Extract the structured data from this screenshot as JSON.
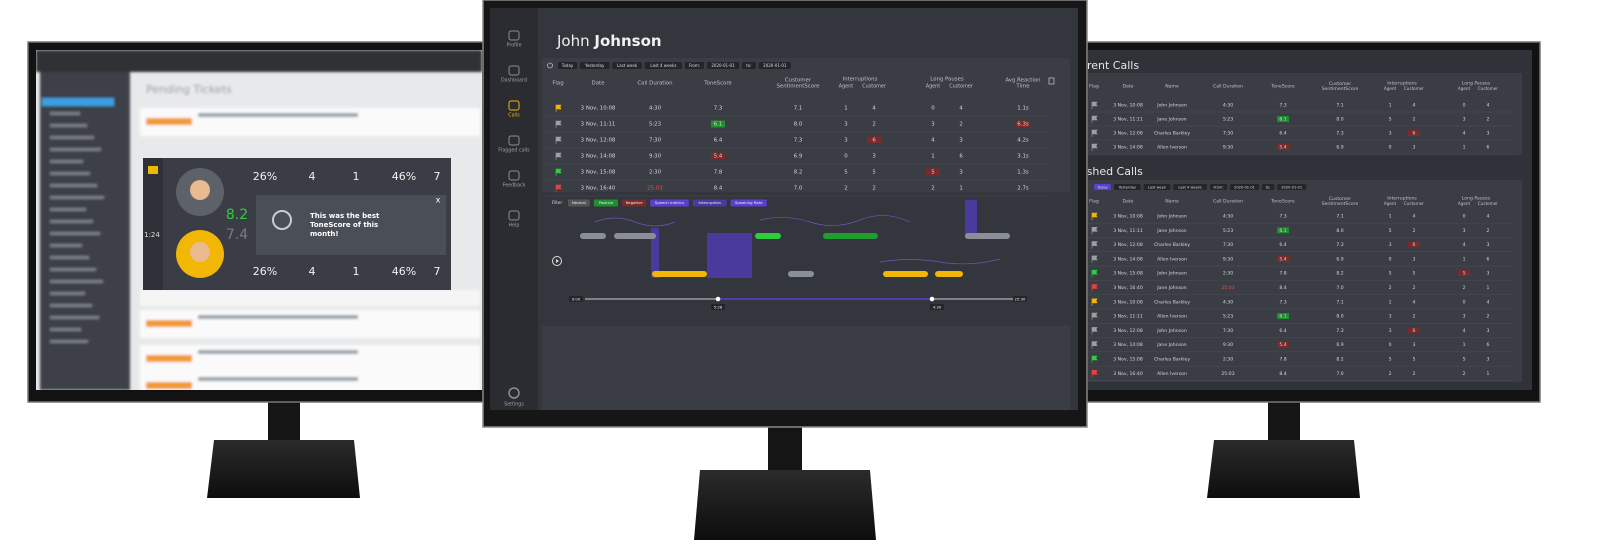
{
  "left_screen": {
    "title": "Pending Tickets",
    "popup": {
      "stats_top": [
        "26%",
        "4",
        "1",
        "46%",
        "7"
      ],
      "stats_bottom": [
        "26%",
        "4",
        "1",
        "46%",
        "7"
      ],
      "score_agent": "8.2",
      "score_other": "7.4",
      "timer": "1:24",
      "message_lines": [
        "This was the best",
        "ToneScore of this",
        "month!"
      ],
      "close": "x"
    }
  },
  "center_screen": {
    "sidebar": [
      "Profile",
      "Dashboard",
      "Calls",
      "Flagged calls",
      "Feedback",
      "Help"
    ],
    "settings": "Settings",
    "user_first": "John",
    "user_last": "Johnson",
    "filters": [
      "Today",
      "Yesterday",
      "Last week",
      "Last 4 weeks"
    ],
    "from_label": "From:",
    "from_date": "2020-01-01",
    "to_label": "to:",
    "to_date": "2020-01-01",
    "headers": [
      {
        "lines": [
          "Flag"
        ]
      },
      {
        "lines": [
          "Date"
        ]
      },
      {
        "lines": [
          "Call Duration"
        ]
      },
      {
        "lines": [
          "ToneScore"
        ]
      },
      {
        "lines": [
          "Customer",
          "SentimentScore"
        ]
      },
      {
        "group": "Interruptions",
        "sub": [
          "Agent",
          "Customer"
        ]
      },
      {
        "group": "Long Pauses",
        "sub": [
          "Agent",
          "Customer"
        ]
      },
      {
        "lines": [
          "Avg.Reaction",
          "Time"
        ]
      }
    ],
    "rows": [
      [
        "3 Nov, 10:08",
        "4:30",
        "7.3",
        "7.1",
        "1",
        "4",
        "0",
        "4",
        "1.1s"
      ],
      [
        "3 Nov, 11:11",
        "5:23",
        "6.1",
        "8.0",
        "3",
        "2",
        "3",
        "2",
        "6.3s"
      ],
      [
        "3 Nov, 12:08",
        "7:30",
        "6.4",
        "7.3",
        "3",
        "6",
        "4",
        "3",
        "4.2s"
      ],
      [
        "3 Nov, 14:08",
        "9:30",
        "5.4",
        "6.9",
        "0",
        "3",
        "1",
        "6",
        "3.1s"
      ],
      [
        "3 Nov, 15:08",
        "2:30",
        "7.8",
        "8.2",
        "5",
        "5",
        "5",
        "3",
        "1.3s"
      ],
      [
        "3 Nov, 16:40",
        "25:03",
        "8.4",
        "7.0",
        "2",
        "2",
        "2",
        "1",
        "2.7s"
      ]
    ],
    "timeline": {
      "filter_label": "Filter:",
      "filters": [
        "Neutral",
        "Positive",
        "Negative",
        "Speech metrics",
        "Interruption",
        "Speaking Rate"
      ],
      "markers": [
        "0:00",
        "5:28",
        "4:30",
        "25:30"
      ]
    }
  },
  "right_screen": {
    "current_title": "Current Calls",
    "finished_title": "Finished Calls",
    "headers": [
      {
        "lines": [
          "Flag"
        ]
      },
      {
        "lines": [
          "Date"
        ]
      },
      {
        "lines": [
          "Name"
        ]
      },
      {
        "lines": [
          "Call Duration"
        ]
      },
      {
        "lines": [
          "ToneScore"
        ]
      },
      {
        "lines": [
          "Customer",
          "SentimentScore"
        ]
      },
      {
        "group": "Interruptions",
        "sub": [
          "Agent",
          "Customer"
        ]
      },
      {
        "group": "Long Pauses",
        "sub": [
          "Agent",
          "Customer"
        ]
      }
    ],
    "current_rows": [
      [
        "3 Nov, 10:08",
        "John Johnson",
        "4:30",
        "7.3",
        "7.1",
        "1",
        "4",
        "0",
        "4"
      ],
      [
        "3 Nov, 11:11",
        "Jane Johnson",
        "5:23",
        "6.1",
        "8.0",
        "5",
        "2",
        "3",
        "2"
      ],
      [
        "3 Nov, 12:08",
        "Charles Barkley",
        "7:30",
        "6.4",
        "7.3",
        "3",
        "6",
        "4",
        "3"
      ],
      [
        "3 Nov, 14:08",
        "Allen Iverson",
        "9:30",
        "5.4",
        "6.9",
        "0",
        "3",
        "1",
        "6"
      ]
    ],
    "finished_rows": [
      [
        "3 Nov, 10:08",
        "John Johnson",
        "4:30",
        "7.3",
        "7.1",
        "1",
        "4",
        "0",
        "4"
      ],
      [
        "3 Nov, 11:11",
        "Jane Johnson",
        "5:23",
        "6.1",
        "8.0",
        "5",
        "2",
        "3",
        "2"
      ],
      [
        "3 Nov, 12:08",
        "Charles Barkley",
        "7:30",
        "6.4",
        "7.3",
        "3",
        "6",
        "4",
        "3"
      ],
      [
        "3 Nov, 14:08",
        "Allen Iverson",
        "9:30",
        "5.4",
        "6.9",
        "0",
        "3",
        "1",
        "6"
      ],
      [
        "3 Nov, 15:08",
        "John Johnson",
        "2:30",
        "7.8",
        "8.2",
        "5",
        "5",
        "5",
        "3"
      ],
      [
        "3 Nov, 16:40",
        "Jane Johnson",
        "25:03",
        "8.4",
        "7.0",
        "2",
        "2",
        "2",
        "1"
      ],
      [
        "3 Nov, 10:08",
        "Charles Barkley",
        "4:30",
        "7.3",
        "7.1",
        "1",
        "4",
        "0",
        "4"
      ],
      [
        "3 Nov, 11:11",
        "Allen Iverson",
        "5:23",
        "6.1",
        "8.0",
        "3",
        "2",
        "3",
        "2"
      ],
      [
        "3 Nov, 12:08",
        "John Johnson",
        "7:30",
        "6.4",
        "7.3",
        "3",
        "6",
        "4",
        "3"
      ],
      [
        "3 Nov, 14:08",
        "Jane Johnson",
        "9:30",
        "5.4",
        "6.9",
        "0",
        "3",
        "1",
        "6"
      ],
      [
        "3 Nov, 15:08",
        "Charles Barkley",
        "2:30",
        "7.8",
        "8.2",
        "5",
        "5",
        "5",
        "3"
      ],
      [
        "3 Nov, 16:40",
        "Allen Iverson",
        "25:03",
        "8.4",
        "7.0",
        "2",
        "2",
        "2",
        "1"
      ]
    ]
  }
}
